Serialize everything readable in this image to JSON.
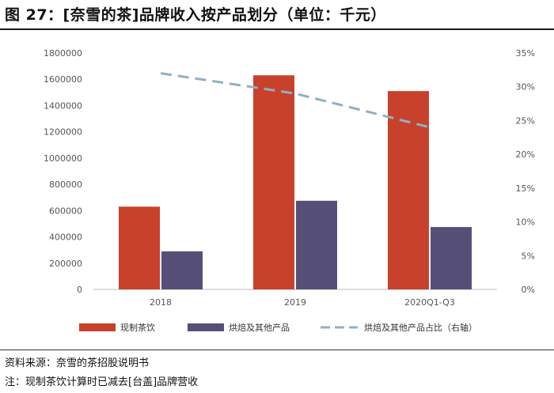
{
  "title": "图 27：[奈雪的茶]品牌收入按产品划分（单位：千元）",
  "source": "资料来源：奈雪的茶招股说明书",
  "note": "注：现制茶饮计算时已减去[台盖]品牌营收",
  "colors": {
    "tea": "#C8412A",
    "bakery": "#565078",
    "ratio": "#8DB1C8",
    "axis": "#BBBBBB"
  },
  "chart_data": {
    "type": "bar",
    "categories": [
      "2018",
      "2019",
      "2020Q1-Q3"
    ],
    "series": [
      {
        "name": "现制茶饮",
        "type": "bar",
        "axis": "left",
        "values": [
          630000,
          1630000,
          1510000
        ]
      },
      {
        "name": "烘焙及其他产品",
        "type": "bar",
        "axis": "left",
        "values": [
          290000,
          675000,
          475000
        ]
      },
      {
        "name": "烘焙及其他产品占比（右轴）",
        "type": "line",
        "style": "dashed",
        "axis": "right",
        "values": [
          0.32,
          0.29,
          0.24
        ]
      }
    ],
    "ylim": [
      0,
      1800000
    ],
    "y_ticks": [
      "0",
      "200000",
      "400000",
      "600000",
      "800000",
      "1000000",
      "1200000",
      "1400000",
      "1600000",
      "1800000"
    ],
    "y2lim": [
      0,
      0.35
    ],
    "y2_ticks": [
      "0%",
      "5%",
      "10%",
      "15%",
      "20%",
      "25%",
      "30%",
      "35%"
    ],
    "grid": false,
    "legend": "bottom"
  }
}
